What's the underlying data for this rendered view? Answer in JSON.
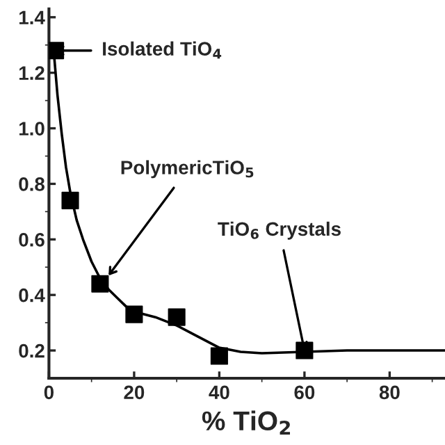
{
  "chart_data": {
    "type": "scatter",
    "xlabel": "% TiO$_{2}$",
    "series": [
      {
        "color": "#000000",
        "marker": "square",
        "x": [
          1.5,
          5,
          12,
          20,
          30,
          40,
          60
        ],
        "values": [
          1.28,
          0.74,
          0.44,
          0.33,
          0.32,
          0.18,
          0.2
        ]
      },
      {
        "type": "line",
        "color": "#000000",
        "marker": "none",
        "line_style": "solid",
        "x": [
          1,
          2,
          3,
          4,
          5,
          6.5,
          8,
          10,
          12,
          14,
          16,
          18,
          20,
          25,
          30,
          35,
          40,
          45,
          50,
          60,
          70,
          80,
          93
        ],
        "values": [
          1.3,
          1.12,
          0.98,
          0.86,
          0.77,
          0.67,
          0.6,
          0.52,
          0.46,
          0.42,
          0.39,
          0.36,
          0.34,
          0.32,
          0.29,
          0.25,
          0.21,
          0.195,
          0.19,
          0.195,
          0.2,
          0.2,
          0.2
        ]
      }
    ],
    "xlim": [
      0,
      93
    ],
    "ylim": [
      0.1,
      1.43
    ],
    "xticks": [
      0,
      20,
      40,
      60,
      80
    ],
    "yticks": [
      0.2,
      0.4,
      0.6,
      0.8,
      {
        "value": 1.0,
        "label": "1.0"
      },
      1.2,
      1.4
    ],
    "grid": false,
    "legend": false,
    "annotations": [
      {
        "text": "Isolated TiO$_{4}$",
        "x": 1.5,
        "y": 1.28
      },
      {
        "text": "PolymericTiO$_{5}$",
        "x": 14,
        "y": 0.47
      },
      {
        "text": "TiO$_{6}$ Crystals",
        "x": 60,
        "y": 0.2
      }
    ]
  }
}
